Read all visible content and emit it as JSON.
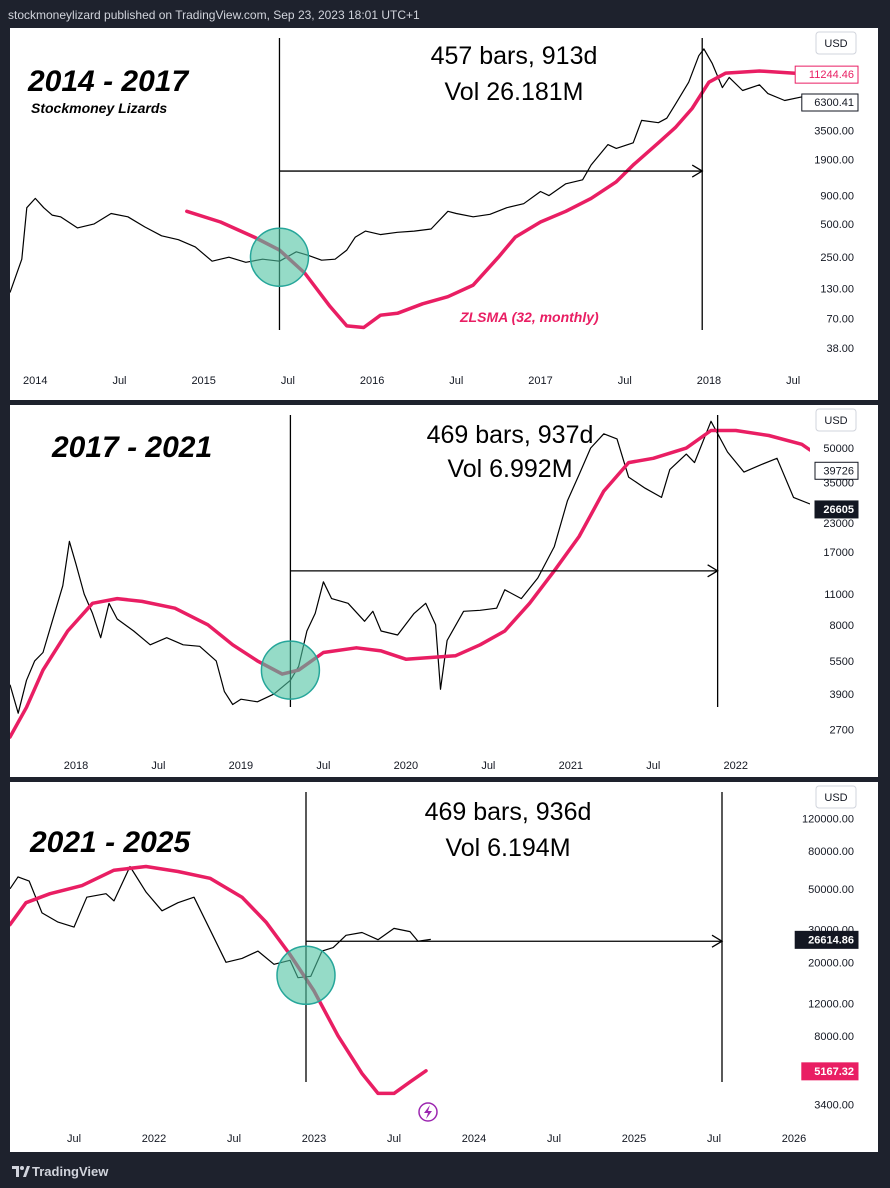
{
  "header": {
    "text": "stockmoneylizard published on TradingView.com, Sep 23, 2023 18:01 UTC+1"
  },
  "footer": {
    "brand": "TradingView"
  },
  "colors": {
    "background": "#1e222d",
    "panel": "#ffffff",
    "price": "#000000",
    "zlsma": "#e91e63",
    "circle_fill": "#4fc3a1",
    "circle_stroke": "#26a69a",
    "axis_text": "#131722"
  },
  "chart_data": [
    {
      "type": "line",
      "title": "2014 - 2017",
      "subtitle": "Stockmoney Lizards",
      "annotation_line1": "457 bars, 913d",
      "annotation_line2": "Vol 26.181M",
      "currency": "USD",
      "indicator_label": "ZLSMA (32, monthly)",
      "log_scale": true,
      "xlim": [
        2013.85,
        2018.6
      ],
      "ylim": [
        25,
        27000
      ],
      "x_ticks": [
        {
          "x": 2014.0,
          "label": "2014"
        },
        {
          "x": 2014.5,
          "label": "Jul"
        },
        {
          "x": 2015.0,
          "label": "2015"
        },
        {
          "x": 2015.5,
          "label": "Jul"
        },
        {
          "x": 2016.0,
          "label": "2016"
        },
        {
          "x": 2016.5,
          "label": "Jul"
        },
        {
          "x": 2017.0,
          "label": "2017"
        },
        {
          "x": 2017.5,
          "label": "Jul"
        },
        {
          "x": 2018.0,
          "label": "2018"
        },
        {
          "x": 2018.5,
          "label": "Jul"
        }
      ],
      "y_ticks": [
        3500,
        1900,
        900,
        500,
        250,
        130,
        70,
        38
      ],
      "y_tick_labels": [
        "3500.00",
        "1900.00",
        "900.00",
        "500.00",
        "250.00",
        "130.00",
        "70.00",
        "38.00"
      ],
      "price_tags": [
        {
          "value": 11244.46,
          "label": "11244.46",
          "style": "magenta-outline"
        },
        {
          "value": 6300.41,
          "label": "6300.41",
          "style": "outline"
        }
      ],
      "price_series": [
        [
          2013.85,
          120
        ],
        [
          2013.92,
          240
        ],
        [
          2013.95,
          700
        ],
        [
          2014.0,
          850
        ],
        [
          2014.05,
          700
        ],
        [
          2014.1,
          600
        ],
        [
          2014.15,
          580
        ],
        [
          2014.25,
          460
        ],
        [
          2014.35,
          500
        ],
        [
          2014.45,
          620
        ],
        [
          2014.55,
          580
        ],
        [
          2014.65,
          470
        ],
        [
          2014.75,
          390
        ],
        [
          2014.85,
          360
        ],
        [
          2014.95,
          310
        ],
        [
          2015.05,
          230
        ],
        [
          2015.15,
          250
        ],
        [
          2015.25,
          225
        ],
        [
          2015.35,
          240
        ],
        [
          2015.45,
          230
        ],
        [
          2015.55,
          280
        ],
        [
          2015.62,
          260
        ],
        [
          2015.7,
          235
        ],
        [
          2015.78,
          240
        ],
        [
          2015.85,
          290
        ],
        [
          2015.9,
          380
        ],
        [
          2015.96,
          430
        ],
        [
          2016.05,
          400
        ],
        [
          2016.15,
          420
        ],
        [
          2016.25,
          430
        ],
        [
          2016.35,
          450
        ],
        [
          2016.45,
          650
        ],
        [
          2016.5,
          620
        ],
        [
          2016.6,
          580
        ],
        [
          2016.7,
          610
        ],
        [
          2016.8,
          700
        ],
        [
          2016.9,
          760
        ],
        [
          2017.0,
          980
        ],
        [
          2017.05,
          900
        ],
        [
          2017.15,
          1150
        ],
        [
          2017.25,
          1250
        ],
        [
          2017.3,
          1700
        ],
        [
          2017.4,
          2600
        ],
        [
          2017.45,
          2400
        ],
        [
          2017.55,
          2700
        ],
        [
          2017.6,
          4300
        ],
        [
          2017.7,
          4100
        ],
        [
          2017.75,
          4500
        ],
        [
          2017.8,
          6000
        ],
        [
          2017.88,
          9500
        ],
        [
          2017.94,
          16500
        ],
        [
          2017.97,
          19000
        ],
        [
          2018.02,
          14000
        ],
        [
          2018.08,
          8500
        ],
        [
          2018.12,
          10500
        ],
        [
          2018.2,
          8000
        ],
        [
          2018.3,
          9000
        ],
        [
          2018.35,
          7500
        ],
        [
          2018.45,
          6500
        ],
        [
          2018.55,
          7000
        ],
        [
          2018.6,
          6300
        ]
      ],
      "zlsma_series": [
        [
          2014.9,
          650
        ],
        [
          2015.1,
          520
        ],
        [
          2015.3,
          380
        ],
        [
          2015.45,
          290
        ],
        [
          2015.6,
          180
        ],
        [
          2015.75,
          90
        ],
        [
          2015.85,
          60
        ],
        [
          2015.95,
          58
        ],
        [
          2016.05,
          75
        ],
        [
          2016.15,
          78
        ],
        [
          2016.3,
          95
        ],
        [
          2016.45,
          110
        ],
        [
          2016.6,
          140
        ],
        [
          2016.75,
          250
        ],
        [
          2016.85,
          380
        ],
        [
          2017.0,
          520
        ],
        [
          2017.15,
          650
        ],
        [
          2017.3,
          850
        ],
        [
          2017.45,
          1200
        ],
        [
          2017.55,
          1700
        ],
        [
          2017.7,
          2700
        ],
        [
          2017.8,
          3700
        ],
        [
          2017.9,
          5500
        ],
        [
          2018.0,
          9500
        ],
        [
          2018.1,
          11500
        ],
        [
          2018.3,
          12000
        ],
        [
          2018.5,
          11500
        ],
        [
          2018.6,
          11244
        ]
      ],
      "circle_at": [
        2015.45,
        250
      ],
      "vlines": [
        2015.45,
        2017.96
      ],
      "arrow": {
        "from": [
          2015.45,
          1500
        ],
        "to": [
          2017.96,
          1500
        ]
      }
    },
    {
      "type": "line",
      "title": "2017 - 2021",
      "annotation_line1": "469 bars, 937d",
      "annotation_line2": "Vol 6.992M",
      "currency": "USD",
      "log_scale": true,
      "xlim": [
        2017.6,
        2022.45
      ],
      "ylim": [
        2300,
        75000
      ],
      "x_ticks": [
        {
          "x": 2018.0,
          "label": "2018"
        },
        {
          "x": 2018.5,
          "label": "Jul"
        },
        {
          "x": 2019.0,
          "label": "2019"
        },
        {
          "x": 2019.5,
          "label": "Jul"
        },
        {
          "x": 2020.0,
          "label": "2020"
        },
        {
          "x": 2020.5,
          "label": "Jul"
        },
        {
          "x": 2021.0,
          "label": "2021"
        },
        {
          "x": 2021.5,
          "label": "Jul"
        },
        {
          "x": 2022.0,
          "label": "2022"
        }
      ],
      "y_ticks": [
        50000,
        35000,
        23000,
        17000,
        11000,
        8000,
        5500,
        3900,
        2700
      ],
      "y_tick_labels": [
        "50000",
        "35000",
        "23000",
        "17000",
        "11000",
        "8000",
        "5500",
        "3900",
        "2700"
      ],
      "price_tags": [
        {
          "value": 39726,
          "label": "39726",
          "style": "outline"
        },
        {
          "value": 26605,
          "label": "26605",
          "style": "dark"
        }
      ],
      "price_series": [
        [
          2017.6,
          4300
        ],
        [
          2017.65,
          3200
        ],
        [
          2017.7,
          4500
        ],
        [
          2017.75,
          5500
        ],
        [
          2017.8,
          6000
        ],
        [
          2017.85,
          8000
        ],
        [
          2017.92,
          12000
        ],
        [
          2017.96,
          19000
        ],
        [
          2018.0,
          15000
        ],
        [
          2018.05,
          11000
        ],
        [
          2018.1,
          9000
        ],
        [
          2018.15,
          7000
        ],
        [
          2018.2,
          10000
        ],
        [
          2018.25,
          8500
        ],
        [
          2018.35,
          7500
        ],
        [
          2018.45,
          6500
        ],
        [
          2018.55,
          7000
        ],
        [
          2018.65,
          6500
        ],
        [
          2018.75,
          6400
        ],
        [
          2018.85,
          5500
        ],
        [
          2018.9,
          4000
        ],
        [
          2018.95,
          3500
        ],
        [
          2019.0,
          3700
        ],
        [
          2019.1,
          3600
        ],
        [
          2019.2,
          3900
        ],
        [
          2019.3,
          4500
        ],
        [
          2019.35,
          5200
        ],
        [
          2019.4,
          7500
        ],
        [
          2019.45,
          9000
        ],
        [
          2019.5,
          12500
        ],
        [
          2019.55,
          10500
        ],
        [
          2019.65,
          10000
        ],
        [
          2019.75,
          8300
        ],
        [
          2019.8,
          9200
        ],
        [
          2019.85,
          7500
        ],
        [
          2019.95,
          7200
        ],
        [
          2020.05,
          9000
        ],
        [
          2020.12,
          10000
        ],
        [
          2020.18,
          8000
        ],
        [
          2020.21,
          4100
        ],
        [
          2020.25,
          6800
        ],
        [
          2020.35,
          9200
        ],
        [
          2020.45,
          9300
        ],
        [
          2020.55,
          9500
        ],
        [
          2020.6,
          11500
        ],
        [
          2020.7,
          10500
        ],
        [
          2020.8,
          13000
        ],
        [
          2020.9,
          18000
        ],
        [
          2020.98,
          29000
        ],
        [
          2021.05,
          38000
        ],
        [
          2021.12,
          50000
        ],
        [
          2021.2,
          58000
        ],
        [
          2021.28,
          55000
        ],
        [
          2021.35,
          37000
        ],
        [
          2021.45,
          33000
        ],
        [
          2021.55,
          30000
        ],
        [
          2021.6,
          40000
        ],
        [
          2021.7,
          47000
        ],
        [
          2021.75,
          43000
        ],
        [
          2021.85,
          66000
        ],
        [
          2021.95,
          48000
        ],
        [
          2022.05,
          39000
        ],
        [
          2022.15,
          42000
        ],
        [
          2022.25,
          45000
        ],
        [
          2022.35,
          30000
        ],
        [
          2022.45,
          28000
        ]
      ],
      "zlsma_series": [
        [
          2017.6,
          2500
        ],
        [
          2017.7,
          3400
        ],
        [
          2017.8,
          5000
        ],
        [
          2017.95,
          7500
        ],
        [
          2018.1,
          10000
        ],
        [
          2018.25,
          10500
        ],
        [
          2018.4,
          10200
        ],
        [
          2018.6,
          9500
        ],
        [
          2018.8,
          8000
        ],
        [
          2018.95,
          6500
        ],
        [
          2019.1,
          5500
        ],
        [
          2019.25,
          4800
        ],
        [
          2019.35,
          5000
        ],
        [
          2019.5,
          6000
        ],
        [
          2019.7,
          6300
        ],
        [
          2019.85,
          6100
        ],
        [
          2020.0,
          5600
        ],
        [
          2020.15,
          5700
        ],
        [
          2020.3,
          5800
        ],
        [
          2020.45,
          6500
        ],
        [
          2020.6,
          7500
        ],
        [
          2020.75,
          10000
        ],
        [
          2020.9,
          14000
        ],
        [
          2021.05,
          20000
        ],
        [
          2021.2,
          32000
        ],
        [
          2021.35,
          43000
        ],
        [
          2021.5,
          45000
        ],
        [
          2021.7,
          50000
        ],
        [
          2021.85,
          60000
        ],
        [
          2022.0,
          60000
        ],
        [
          2022.2,
          57000
        ],
        [
          2022.4,
          52000
        ],
        [
          2022.45,
          49000
        ]
      ],
      "circle_at": [
        2019.3,
        5000
      ],
      "vlines": [
        2019.3,
        2021.89
      ],
      "arrow": {
        "from": [
          2019.3,
          14000
        ],
        "to": [
          2021.89,
          14000
        ]
      }
    },
    {
      "type": "line",
      "title": "2021 - 2025",
      "annotation_line1": "469 bars, 936d",
      "annotation_line2": "Vol 6.194M",
      "currency": "USD",
      "log_scale": true,
      "xlim": [
        2021.1,
        2026.1
      ],
      "ylim": [
        2800,
        180000
      ],
      "x_ticks": [
        {
          "x": 2021.5,
          "label": "Jul"
        },
        {
          "x": 2022.0,
          "label": "2022"
        },
        {
          "x": 2022.5,
          "label": "Jul"
        },
        {
          "x": 2023.0,
          "label": "2023"
        },
        {
          "x": 2023.5,
          "label": "Jul"
        },
        {
          "x": 2024.0,
          "label": "2024"
        },
        {
          "x": 2024.5,
          "label": "Jul"
        },
        {
          "x": 2025.0,
          "label": "2025"
        },
        {
          "x": 2025.5,
          "label": "Jul"
        },
        {
          "x": 2026.0,
          "label": "2026"
        }
      ],
      "y_ticks": [
        120000,
        80000,
        50000,
        30000,
        20000,
        12000,
        8000,
        3400
      ],
      "y_tick_labels": [
        "120000.00",
        "80000.00",
        "50000.00",
        "30000.00",
        "20000.00",
        "12000.00",
        "8000.00",
        "3400.00"
      ],
      "price_tags": [
        {
          "value": 26614.86,
          "label": "26614.86",
          "style": "dark"
        },
        {
          "value": 5167.32,
          "label": "5167.32",
          "style": "magenta"
        }
      ],
      "price_series": [
        [
          2021.1,
          50000
        ],
        [
          2021.15,
          58000
        ],
        [
          2021.22,
          55000
        ],
        [
          2021.3,
          37000
        ],
        [
          2021.4,
          33000
        ],
        [
          2021.5,
          31000
        ],
        [
          2021.58,
          45000
        ],
        [
          2021.7,
          47000
        ],
        [
          2021.75,
          43000
        ],
        [
          2021.85,
          66000
        ],
        [
          2021.95,
          48000
        ],
        [
          2022.05,
          38000
        ],
        [
          2022.15,
          42000
        ],
        [
          2022.25,
          45000
        ],
        [
          2022.35,
          30000
        ],
        [
          2022.45,
          20000
        ],
        [
          2022.55,
          21000
        ],
        [
          2022.65,
          23000
        ],
        [
          2022.75,
          19500
        ],
        [
          2022.85,
          20500
        ],
        [
          2022.9,
          16500
        ],
        [
          2022.98,
          16800
        ],
        [
          2023.05,
          23000
        ],
        [
          2023.12,
          24000
        ],
        [
          2023.2,
          28000
        ],
        [
          2023.3,
          29000
        ],
        [
          2023.4,
          26500
        ],
        [
          2023.5,
          30500
        ],
        [
          2023.6,
          29300
        ],
        [
          2023.65,
          26000
        ],
        [
          2023.73,
          26600
        ]
      ],
      "zlsma_series": [
        [
          2021.1,
          32000
        ],
        [
          2021.2,
          42000
        ],
        [
          2021.35,
          47000
        ],
        [
          2021.55,
          52000
        ],
        [
          2021.75,
          63000
        ],
        [
          2021.95,
          66000
        ],
        [
          2022.15,
          62000
        ],
        [
          2022.35,
          57000
        ],
        [
          2022.55,
          45000
        ],
        [
          2022.7,
          33000
        ],
        [
          2022.85,
          22000
        ],
        [
          2023.0,
          14000
        ],
        [
          2023.15,
          8000
        ],
        [
          2023.3,
          5000
        ],
        [
          2023.4,
          3900
        ],
        [
          2023.5,
          3900
        ],
        [
          2023.6,
          4500
        ],
        [
          2023.7,
          5167
        ]
      ],
      "circle_at": [
        2022.95,
        17000
      ],
      "vlines": [
        2022.95,
        2025.55
      ],
      "arrow": {
        "from": [
          2022.95,
          26000
        ],
        "to": [
          2025.55,
          26000
        ]
      }
    }
  ]
}
